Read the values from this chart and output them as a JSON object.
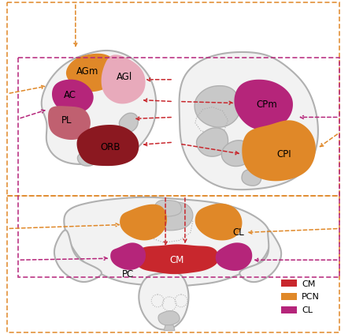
{
  "colors": {
    "CM": "#C8272D",
    "PCN": "#E08828",
    "CL": "#B5257A",
    "AGm": "#E08828",
    "AGl": "#E8AABB",
    "AC": "#B5257A",
    "PL": "#C06070",
    "ORB": "#8B1820",
    "CPm": "#B5257A",
    "CPl": "#E08828",
    "brain_fill": "#F2F2F2",
    "brain_edge": "#B0B0B0",
    "gray_fill": "#C8C8C8",
    "bg": "#FFFFFF"
  },
  "figsize": [
    4.47,
    4.23
  ],
  "dpi": 100
}
